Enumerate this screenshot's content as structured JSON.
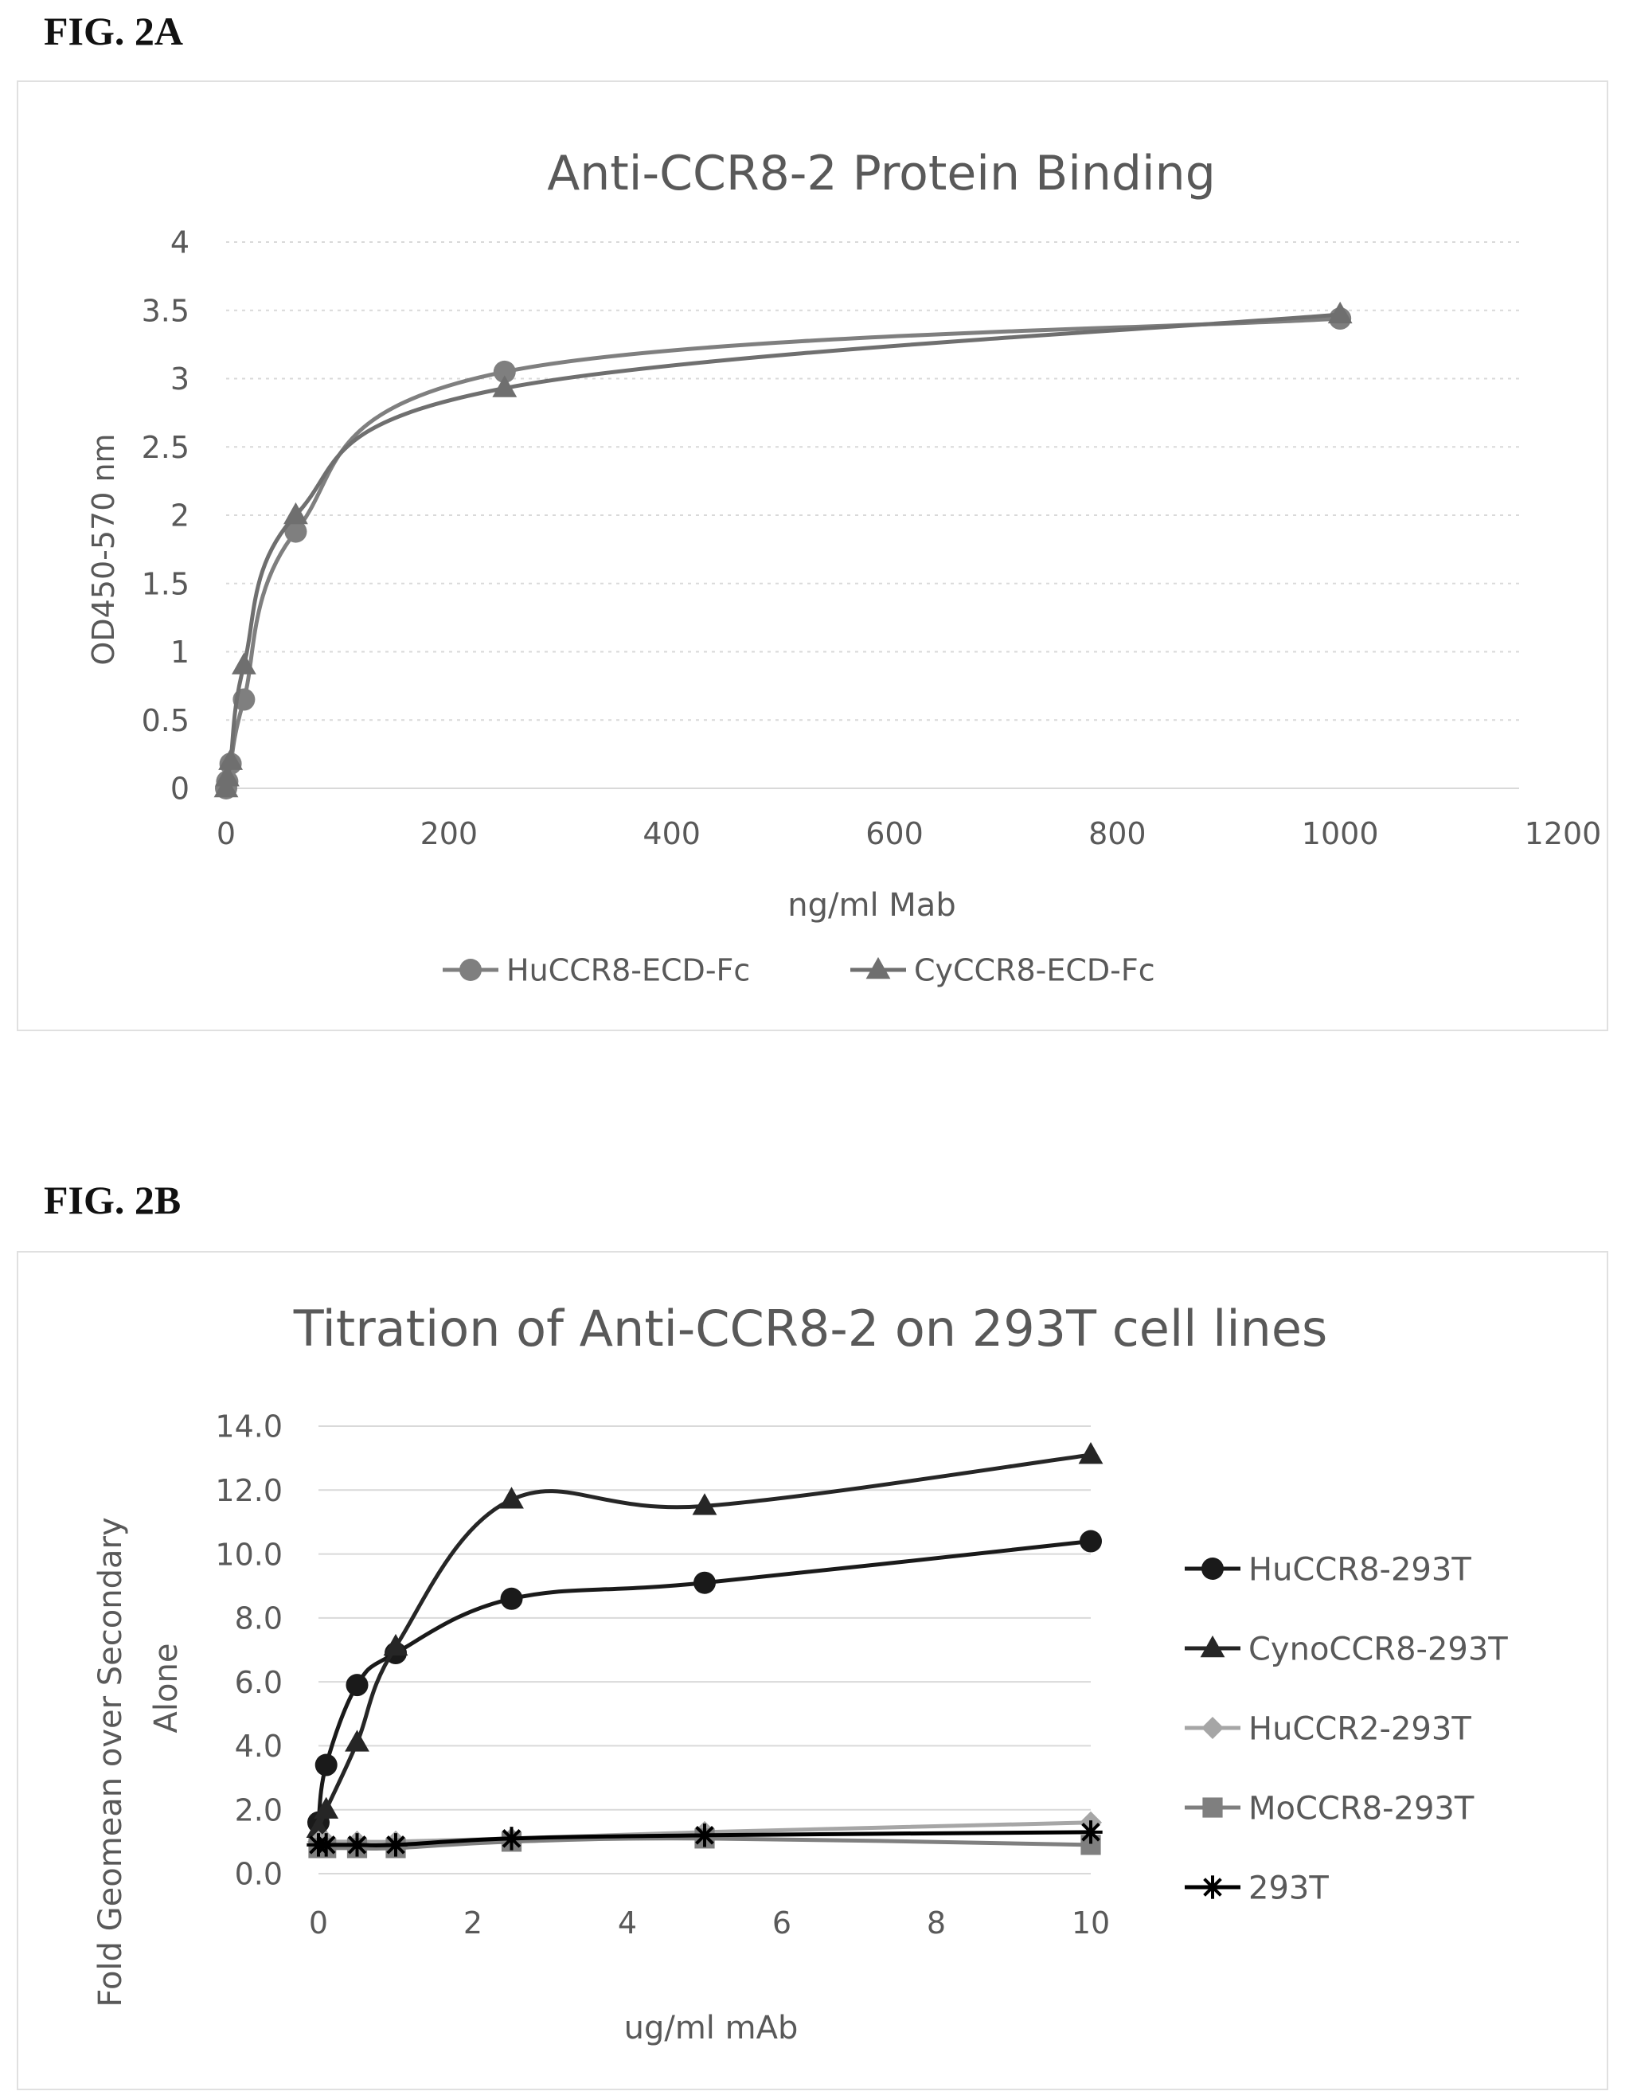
{
  "figures": [
    {
      "label": "FIG. 2A"
    },
    {
      "label": "FIG. 2B"
    }
  ],
  "chart_data": [
    {
      "type": "line",
      "title": "Anti-CCR8-2 Protein Binding",
      "xlabel": "ng/ml Mab",
      "ylabel": "OD450-570 nm",
      "xlim": [
        0,
        1200
      ],
      "ylim": [
        0,
        4
      ],
      "x_ticks": [
        "0",
        "200",
        "400",
        "600",
        "800",
        "1000",
        "1200"
      ],
      "y_ticks": [
        "0",
        "0.5",
        "1",
        "1.5",
        "2",
        "2.5",
        "3",
        "3.5",
        "4"
      ],
      "grid": true,
      "legend_position": "bottom",
      "series": [
        {
          "name": "HuCCR8-ECD-Fc",
          "marker": "circle",
          "color": "#7f7f7f",
          "x": [
            0,
            1,
            4,
            16,
            62.5,
            250,
            1000
          ],
          "y": [
            0.0,
            0.05,
            0.18,
            0.65,
            1.88,
            3.05,
            3.44
          ]
        },
        {
          "name": "CyCCR8-ECD-Fc",
          "marker": "triangle",
          "color": "#6f6f6f",
          "x": [
            0,
            1,
            4,
            16,
            62.5,
            250,
            1000
          ],
          "y": [
            0.0,
            0.08,
            0.2,
            0.9,
            2.0,
            2.93,
            3.47
          ]
        }
      ]
    },
    {
      "type": "line",
      "title": "Titration of Anti-CCR8-2 on 293T cell lines",
      "xlabel": "ug/ml mAb",
      "ylabel_lines": [
        "Fold Geomean over Secondary",
        "Alone"
      ],
      "xlim": [
        0,
        10
      ],
      "ylim": [
        0,
        14
      ],
      "x_ticks": [
        "0",
        "2",
        "4",
        "6",
        "8",
        "10"
      ],
      "y_ticks": [
        "0.0",
        "2.0",
        "4.0",
        "6.0",
        "8.0",
        "10.0",
        "12.0",
        "14.0"
      ],
      "grid": true,
      "legend_position": "right",
      "series": [
        {
          "name": "HuCCR8-293T",
          "marker": "circle",
          "color": "#1a1a1a",
          "x": [
            0,
            0.1,
            0.5,
            1,
            2.5,
            5,
            10
          ],
          "y": [
            1.6,
            3.4,
            5.9,
            6.9,
            8.6,
            9.1,
            10.4
          ]
        },
        {
          "name": "CynoCCR8-293T",
          "marker": "triangle",
          "color": "#262626",
          "x": [
            0,
            0.1,
            0.5,
            1,
            2.5,
            5,
            10
          ],
          "y": [
            1.4,
            2.0,
            4.1,
            7.1,
            11.7,
            11.5,
            13.1
          ]
        },
        {
          "name": "HuCCR2-293T",
          "marker": "diamond",
          "color": "#a6a6a6",
          "x": [
            0,
            0.1,
            0.5,
            1,
            2.5,
            5,
            10
          ],
          "y": [
            1.0,
            1.0,
            1.0,
            1.0,
            1.1,
            1.3,
            1.6
          ]
        },
        {
          "name": "MoCCR8-293T",
          "marker": "square",
          "color": "#7f7f7f",
          "x": [
            0,
            0.1,
            0.5,
            1,
            2.5,
            5,
            10
          ],
          "y": [
            0.8,
            0.8,
            0.8,
            0.8,
            1.0,
            1.1,
            0.9
          ]
        },
        {
          "name": "293T",
          "marker": "star",
          "color": "#000000",
          "x": [
            0,
            0.1,
            0.5,
            1,
            2.5,
            5,
            10
          ],
          "y": [
            0.9,
            0.9,
            0.9,
            0.9,
            1.1,
            1.2,
            1.3
          ]
        }
      ]
    }
  ]
}
